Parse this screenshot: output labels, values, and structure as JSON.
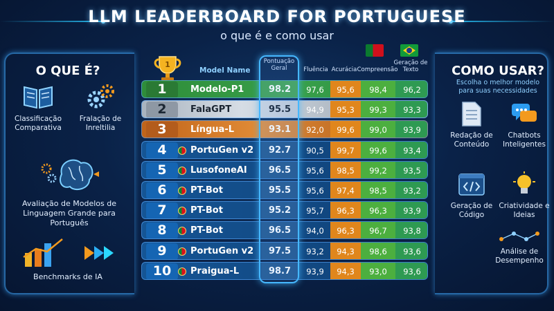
{
  "header": {
    "title": "LLM LEADERBOARD FOR PORTUGUESE",
    "subtitle": "o que é e como usar"
  },
  "left": {
    "title": "O QUE É?",
    "features": [
      {
        "label": "Classificação Comparativa",
        "icon": "book-icon"
      },
      {
        "label": "Fralação de Inreltilia",
        "icon": "gears-icon"
      },
      {
        "label": "Avaliação de Modelos de Linguagem Grande para Português",
        "icon": "brain-icon"
      },
      {
        "label": "Benchmarks de IA",
        "icon": "chart-bars-icon"
      }
    ]
  },
  "right": {
    "title": "COMO USAR?",
    "subtitle": "Escolha o melhor modelo para suas necessidades",
    "features": [
      {
        "label": "Redação de Conteúdo",
        "icon": "document-icon"
      },
      {
        "label": "Chatbots Inteligentes",
        "icon": "chat-icon"
      },
      {
        "label": "Geração de Código",
        "icon": "code-icon"
      },
      {
        "label": "Criatividade e Ideias",
        "icon": "lightbulb-icon"
      },
      {
        "label": "Análise de Desempenho",
        "icon": "network-icon"
      }
    ]
  },
  "table": {
    "headers": {
      "model": "Model Name",
      "score": "Pontuação Geral",
      "fluencia": "Fluência",
      "acuracia": "Acurácia",
      "compreensao": "Compreensão",
      "geracao": "Geração de Texto"
    },
    "flags": [
      "portugal-flag",
      "brazil-flag"
    ],
    "rows": [
      {
        "rank": "1",
        "name": "Modelo-P1",
        "score": "98.2",
        "fluencia": "97,6",
        "acuracia": "95,6",
        "compreensao": "98,4",
        "geracao": "96,2",
        "style": "gold"
      },
      {
        "rank": "2",
        "name": "FalaGPT",
        "score": "95.5",
        "fluencia": "94,9",
        "acuracia": "95,3",
        "compreensao": "99,3",
        "geracao": "93,3",
        "style": "silver"
      },
      {
        "rank": "3",
        "name": "Língua-L",
        "score": "93.1",
        "fluencia": "92,0",
        "acuracia": "99,6",
        "compreensao": "99,0",
        "geracao": "93,9",
        "style": "bronze"
      },
      {
        "rank": "4",
        "name": "PortuGen v2",
        "score": "92.7",
        "fluencia": "90,5",
        "acuracia": "99,7",
        "compreensao": "99,6",
        "geracao": "93,4",
        "style": "blue"
      },
      {
        "rank": "5",
        "name": "LusofoneAI",
        "score": "96.5",
        "fluencia": "95,6",
        "acuracia": "98,5",
        "compreensao": "99,2",
        "geracao": "93,5",
        "style": "blue"
      },
      {
        "rank": "6",
        "name": "PT-Bot",
        "score": "95.5",
        "fluencia": "95,6",
        "acuracia": "97,4",
        "compreensao": "98,5",
        "geracao": "93,2",
        "style": "blue"
      },
      {
        "rank": "7",
        "name": "PT-Bot",
        "score": "95.2",
        "fluencia": "95,7",
        "acuracia": "96,3",
        "compreensao": "96,3",
        "geracao": "93,9",
        "style": "blue"
      },
      {
        "rank": "8",
        "name": "PT-Bot",
        "score": "96.5",
        "fluencia": "94,0",
        "acuracia": "96,3",
        "compreensao": "96,7",
        "geracao": "93,8",
        "style": "blue"
      },
      {
        "rank": "9",
        "name": "PortuGen v2",
        "score": "97.5",
        "fluencia": "93,2",
        "acuracia": "94,3",
        "compreensao": "98,6",
        "geracao": "93,6",
        "style": "blue"
      },
      {
        "rank": "10",
        "name": "Praigua-L",
        "score": "98.7",
        "fluencia": "93,9",
        "acuracia": "94,3",
        "compreensao": "93,0",
        "geracao": "93,6",
        "style": "blue"
      }
    ]
  },
  "colors": {
    "gold": "#e8a21a",
    "silver": "#b9c2cc",
    "bronze": "#d77a2a",
    "highlight": "#46b8ff",
    "acuracia": "#e0861c",
    "compreensao": "#4caf3f",
    "geracao": "#2e9a52"
  }
}
